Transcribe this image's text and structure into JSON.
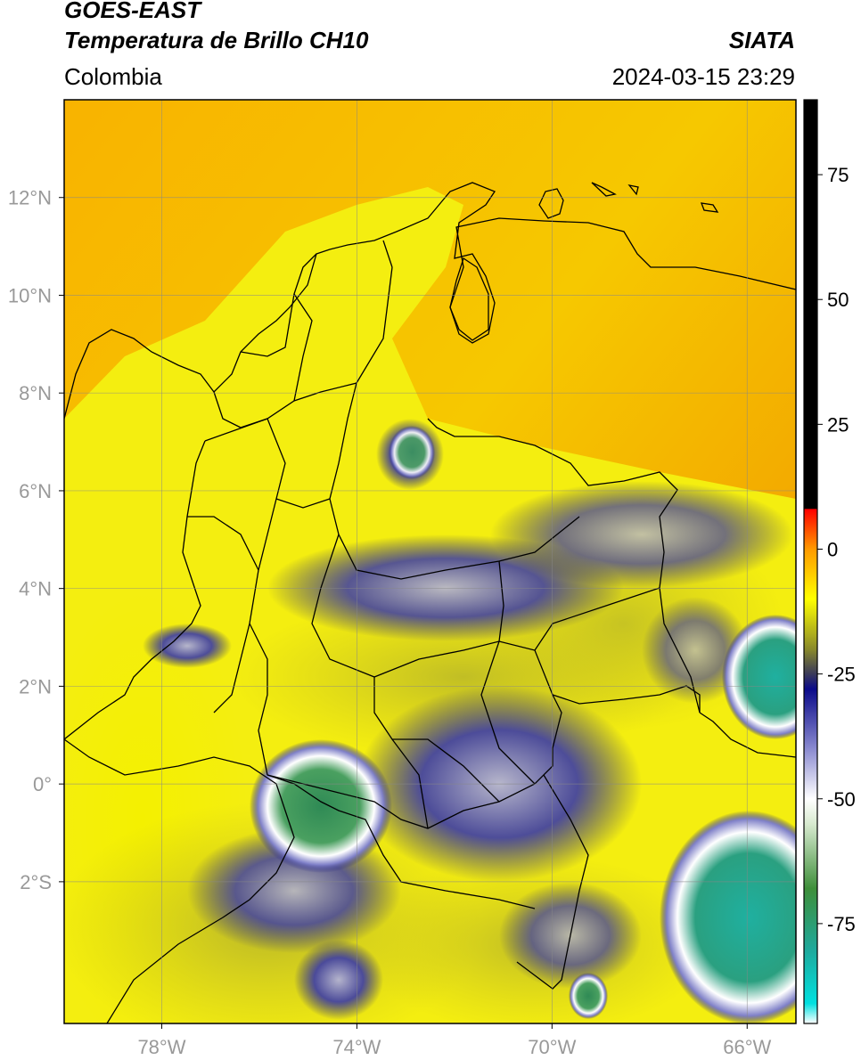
{
  "header": {
    "satellite": "GOES-EAST",
    "product": "Temperatura de Brillo CH10",
    "region": "Colombia",
    "brand": "SIATA",
    "datetime": "2024-03-15 23:29"
  },
  "map": {
    "lon_range": [
      -80,
      -65
    ],
    "lat_range": [
      -4.9,
      14
    ],
    "lat_ticks": [
      {
        "value": 12,
        "label": "12°N"
      },
      {
        "value": 10,
        "label": "10°N"
      },
      {
        "value": 8,
        "label": "8°N"
      },
      {
        "value": 6,
        "label": "6°N"
      },
      {
        "value": 4,
        "label": "4°N"
      },
      {
        "value": 2,
        "label": "2°N"
      },
      {
        "value": 0,
        "label": "0°"
      },
      {
        "value": -2,
        "label": "2°S"
      }
    ],
    "lon_ticks": [
      {
        "value": -78,
        "label": "78°W"
      },
      {
        "value": -74,
        "label": "74°W"
      },
      {
        "value": -70,
        "label": "70°W"
      },
      {
        "value": -66,
        "label": "66°W"
      }
    ],
    "grid": true
  },
  "colorbar": {
    "range": [
      -95,
      90
    ],
    "ticks": [
      {
        "value": 75,
        "label": "75"
      },
      {
        "value": 50,
        "label": "50"
      },
      {
        "value": 25,
        "label": "25"
      },
      {
        "value": 0,
        "label": "0"
      },
      {
        "value": -25,
        "label": "-25"
      },
      {
        "value": -50,
        "label": "-50"
      },
      {
        "value": -75,
        "label": "-75"
      }
    ],
    "stops": [
      {
        "value": -95,
        "color": "#ffffff"
      },
      {
        "value": -91,
        "color": "#00e0e0"
      },
      {
        "value": -80,
        "color": "#1fa89a"
      },
      {
        "value": -68,
        "color": "#3e8f3a"
      },
      {
        "value": -55,
        "color": "#d8ead0"
      },
      {
        "value": -50,
        "color": "#ffffff"
      },
      {
        "value": -40,
        "color": "#8a8ad0"
      },
      {
        "value": -28,
        "color": "#0a0a8a"
      },
      {
        "value": -25,
        "color": "#3a3a5a"
      },
      {
        "value": -20,
        "color": "#8a8a2a"
      },
      {
        "value": -10,
        "color": "#ffff00"
      },
      {
        "value": 0,
        "color": "#ff9a00"
      },
      {
        "value": 8,
        "color": "#ff0000"
      },
      {
        "value": 8.1,
        "color": "#000000"
      },
      {
        "value": 90,
        "color": "#000000"
      }
    ]
  },
  "colors": {
    "ocean_warm": "#f7a400",
    "land_yellow": "#f5ee10",
    "cloud_navy": "#1a1a8a",
    "cloud_top_green": "#3d9a68",
    "border": "#000000"
  }
}
